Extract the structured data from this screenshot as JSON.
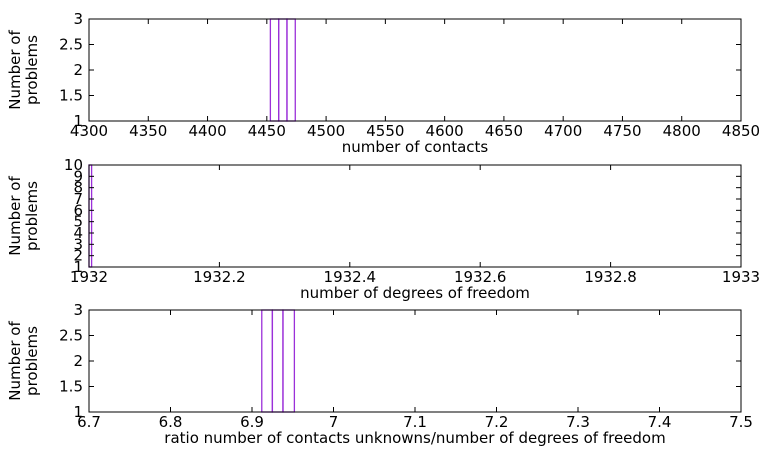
{
  "chart_data": [
    {
      "type": "bar",
      "xlabel": "number of contacts",
      "ylabel": [
        "Number of",
        "problems"
      ],
      "xlim": [
        4300,
        4850
      ],
      "ylim": [
        1,
        3
      ],
      "xticks": [
        4300,
        4350,
        4400,
        4450,
        4500,
        4550,
        4600,
        4650,
        4700,
        4750,
        4800,
        4850
      ],
      "yticks": [
        1,
        1.5,
        2,
        2.5,
        3
      ],
      "bars": [
        {
          "x_start": 4453,
          "x_end": 4460,
          "value": 3
        },
        {
          "x_start": 4460,
          "x_end": 4467,
          "value": 3
        },
        {
          "x_start": 4467,
          "x_end": 4474,
          "value": 3
        }
      ],
      "bar_color": "#9b30d9",
      "grid": false
    },
    {
      "type": "bar",
      "xlabel": "number of degrees of freedom",
      "ylabel": [
        "Number of",
        "problems"
      ],
      "xlim": [
        1932,
        1933
      ],
      "ylim": [
        1,
        10
      ],
      "xticks": [
        1932,
        1932.2,
        1932.4,
        1932.6,
        1932.8,
        1933
      ],
      "yticks": [
        1,
        2,
        3,
        4,
        5,
        6,
        7,
        8,
        9,
        10
      ],
      "bars": [
        {
          "x_start": 1932,
          "x_end": 1932.004,
          "value": 10
        }
      ],
      "bar_color": "#9b30d9",
      "grid": false
    },
    {
      "type": "bar",
      "xlabel": "ratio number of contacts unknowns/number of degrees of freedom",
      "ylabel": [
        "Number of",
        "problems"
      ],
      "xlim": [
        6.7,
        7.5
      ],
      "ylim": [
        1,
        3
      ],
      "xticks": [
        6.7,
        6.8,
        6.9,
        7,
        7.1,
        7.2,
        7.3,
        7.4,
        7.5
      ],
      "yticks": [
        1,
        1.5,
        2,
        2.5,
        3
      ],
      "bars": [
        {
          "x_start": 6.912,
          "x_end": 6.925,
          "value": 3
        },
        {
          "x_start": 6.925,
          "x_end": 6.938,
          "value": 3
        },
        {
          "x_start": 6.938,
          "x_end": 6.952,
          "value": 3
        }
      ],
      "bar_color": "#9b30d9",
      "grid": false
    }
  ]
}
